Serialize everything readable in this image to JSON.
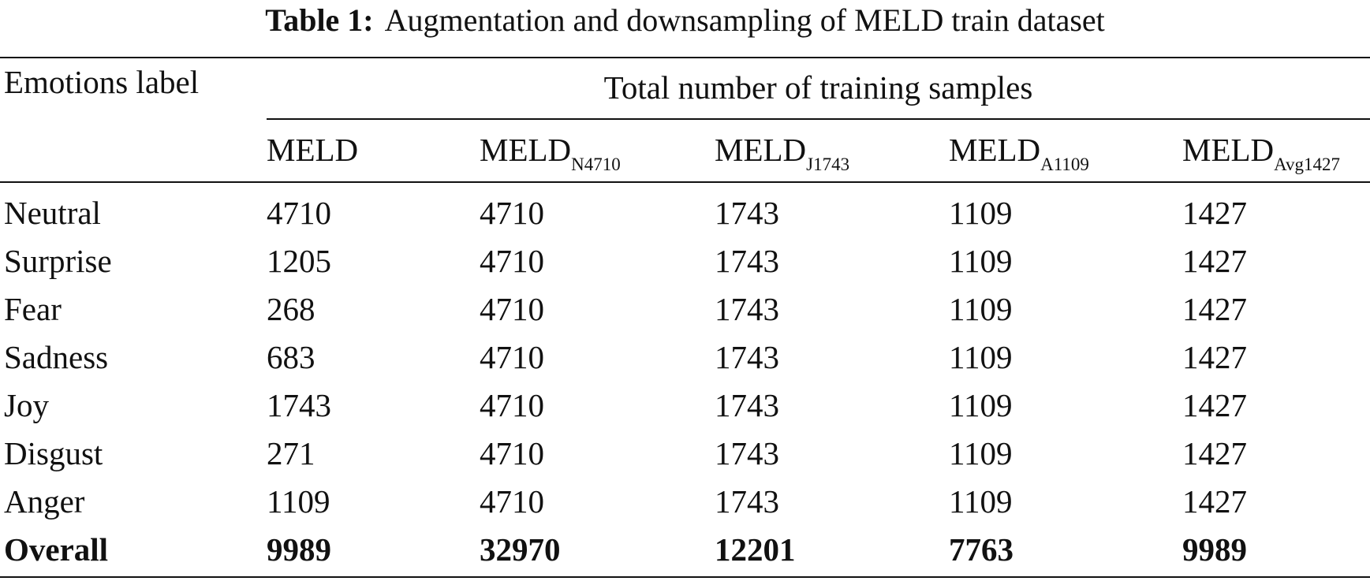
{
  "caption": {
    "label": "Table 1:",
    "text": "Augmentation and downsampling of MELD train dataset"
  },
  "table": {
    "row_header": "Emotions label",
    "group_header": "Total number of training samples",
    "columns": [
      {
        "base": "MELD",
        "sub": ""
      },
      {
        "base": "MELD",
        "sub": "N4710"
      },
      {
        "base": "MELD",
        "sub": "J1743"
      },
      {
        "base": "MELD",
        "sub": "A1109"
      },
      {
        "base": "MELD",
        "sub": "Avg1427"
      }
    ],
    "rows": [
      {
        "label": "Neutral",
        "values": [
          "4710",
          "4710",
          "1743",
          "1109",
          "1427"
        ]
      },
      {
        "label": "Surprise",
        "values": [
          "1205",
          "4710",
          "1743",
          "1109",
          "1427"
        ]
      },
      {
        "label": "Fear",
        "values": [
          "268",
          "4710",
          "1743",
          "1109",
          "1427"
        ]
      },
      {
        "label": "Sadness",
        "values": [
          "683",
          "4710",
          "1743",
          "1109",
          "1427"
        ]
      },
      {
        "label": "Joy",
        "values": [
          "1743",
          "4710",
          "1743",
          "1109",
          "1427"
        ]
      },
      {
        "label": "Disgust",
        "values": [
          "271",
          "4710",
          "1743",
          "1109",
          "1427"
        ]
      },
      {
        "label": "Anger",
        "values": [
          "1109",
          "4710",
          "1743",
          "1109",
          "1427"
        ]
      }
    ],
    "total": {
      "label": "Overall",
      "values": [
        "9989",
        "32970",
        "12201",
        "7763",
        "9989"
      ]
    }
  }
}
